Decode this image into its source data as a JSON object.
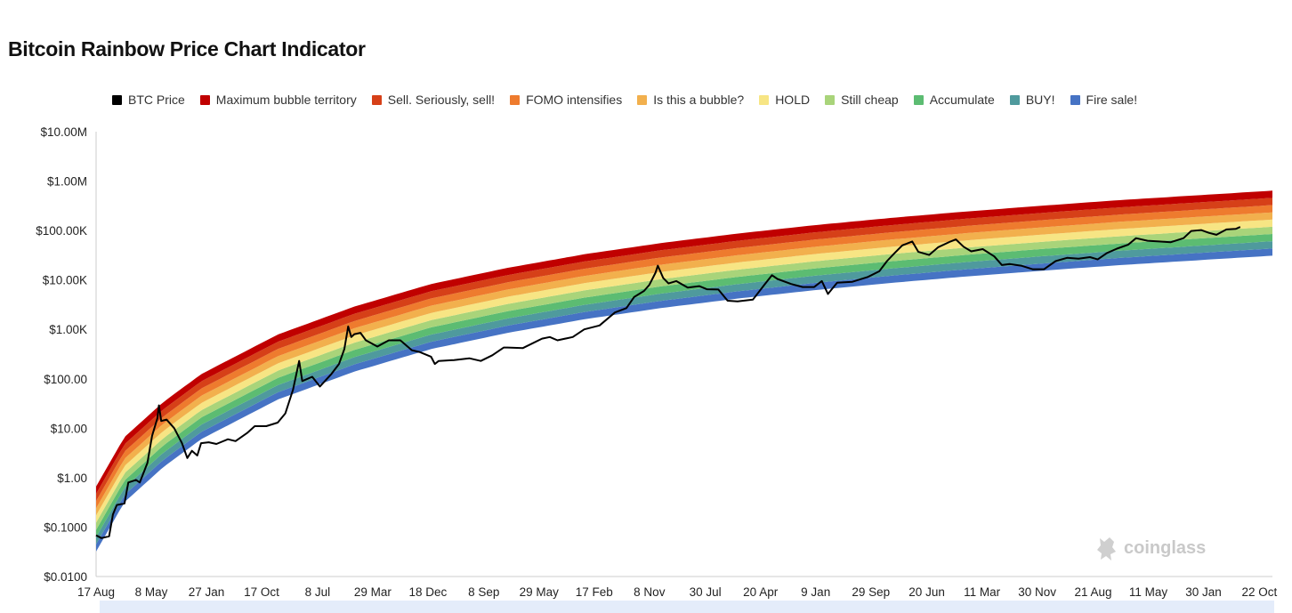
{
  "title": "Bitcoin Rainbow Price Chart Indicator",
  "watermark": "coinglass",
  "legend": [
    {
      "label": "BTC Price",
      "color": "#000000",
      "name": "legend-btc-price"
    },
    {
      "label": "Maximum bubble territory",
      "color": "#c00000",
      "name": "legend-maximum-bubble"
    },
    {
      "label": "Sell. Seriously, sell!",
      "color": "#d64018",
      "name": "legend-sell"
    },
    {
      "label": "FOMO intensifies",
      "color": "#ee7b2e",
      "name": "legend-fomo"
    },
    {
      "label": "Is this a bubble?",
      "color": "#f2b04d",
      "name": "legend-bubble"
    },
    {
      "label": "HOLD",
      "color": "#f7e584",
      "name": "legend-hold"
    },
    {
      "label": "Still cheap",
      "color": "#a9d47a",
      "name": "legend-still-cheap"
    },
    {
      "label": "Accumulate",
      "color": "#5cbc72",
      "name": "legend-accumulate"
    },
    {
      "label": "BUY!",
      "color": "#4f9a9d",
      "name": "legend-buy"
    },
    {
      "label": "Fire sale!",
      "color": "#4673c4",
      "name": "legend-fire-sale"
    }
  ],
  "chart_data": {
    "type": "area",
    "title": "Bitcoin Rainbow Price Chart Indicator",
    "yscale": "log",
    "ylim": [
      0.01,
      10000000
    ],
    "y_ticks": [
      "$10.00M",
      "$1.00M",
      "$100.00K",
      "$10.00K",
      "$1.00K",
      "$100.00",
      "$10.00",
      "$1.00",
      "$0.1000",
      "$0.0100"
    ],
    "x_ticks": [
      "17 Aug",
      "8 May",
      "27 Jan",
      "17 Oct",
      "8 Jul",
      "29 Mar",
      "18 Dec",
      "8 Sep",
      "29 May",
      "17 Feb",
      "8 Nov",
      "30 Jul",
      "20 Apr",
      "9 Jan",
      "29 Sep",
      "20 Jun",
      "11 Mar",
      "30 Nov",
      "21 Aug",
      "11 May",
      "30 Jan",
      "22 Oct"
    ],
    "x_years": [
      2010.63,
      2011.35,
      2012.07,
      2012.79,
      2013.52,
      2014.24,
      2014.96,
      2015.69,
      2016.41,
      2017.13,
      2017.85,
      2018.58,
      2019.3,
      2020.02,
      2020.74,
      2021.47,
      2022.19,
      2022.91,
      2023.64,
      2024.36,
      2025.08,
      2025.81
    ],
    "xlim_years": [
      2010.63,
      2025.98
    ],
    "bands": {
      "names": [
        "Fire sale!",
        "BUY!",
        "Accumulate",
        "Still cheap",
        "HOLD",
        "Is this a bubble?",
        "FOMO intensifies",
        "Sell. Seriously, sell!",
        "Maximum bubble territory"
      ],
      "colors": [
        "#4673c4",
        "#4f9a9d",
        "#5cbc72",
        "#a9d47a",
        "#f7e584",
        "#f2b04d",
        "#ee7b2e",
        "#d64018",
        "#c00000"
      ],
      "lower_edge_points": [
        [
          2010.63,
          0.032
        ],
        [
          2011.0,
          0.32
        ],
        [
          2011.5,
          1.6
        ],
        [
          2012.0,
          6
        ],
        [
          2013.0,
          38
        ],
        [
          2014.0,
          140
        ],
        [
          2015.0,
          400
        ],
        [
          2016.0,
          850
        ],
        [
          2017.0,
          1600
        ],
        [
          2018.0,
          2700
        ],
        [
          2019.0,
          4200
        ],
        [
          2020.0,
          6200
        ],
        [
          2021.0,
          8700
        ],
        [
          2022.0,
          11800
        ],
        [
          2023.0,
          15500
        ],
        [
          2024.0,
          20000
        ],
        [
          2025.0,
          25000
        ],
        [
          2025.98,
          31000
        ]
      ],
      "band_multiplier": 1.4,
      "band_count": 9
    },
    "series": [
      {
        "name": "BTC Price",
        "color": "#000000",
        "points": [
          [
            2010.63,
            0.068
          ],
          [
            2010.7,
            0.06
          ],
          [
            2010.8,
            0.065
          ],
          [
            2010.85,
            0.18
          ],
          [
            2010.9,
            0.28
          ],
          [
            2011.0,
            0.3
          ],
          [
            2011.05,
            0.8
          ],
          [
            2011.15,
            0.9
          ],
          [
            2011.2,
            0.8
          ],
          [
            2011.3,
            2
          ],
          [
            2011.36,
            7
          ],
          [
            2011.43,
            16
          ],
          [
            2011.45,
            29
          ],
          [
            2011.48,
            14
          ],
          [
            2011.55,
            15
          ],
          [
            2011.65,
            10
          ],
          [
            2011.75,
            5
          ],
          [
            2011.82,
            2.5
          ],
          [
            2011.88,
            3.5
          ],
          [
            2011.95,
            2.8
          ],
          [
            2012.0,
            5
          ],
          [
            2012.1,
            5.2
          ],
          [
            2012.2,
            4.8
          ],
          [
            2012.35,
            6
          ],
          [
            2012.45,
            5.5
          ],
          [
            2012.6,
            8
          ],
          [
            2012.7,
            11
          ],
          [
            2012.85,
            11
          ],
          [
            2013.0,
            13
          ],
          [
            2013.1,
            20
          ],
          [
            2013.2,
            60
          ],
          [
            2013.28,
            230
          ],
          [
            2013.32,
            90
          ],
          [
            2013.45,
            110
          ],
          [
            2013.55,
            70
          ],
          [
            2013.7,
            125
          ],
          [
            2013.8,
            200
          ],
          [
            2013.87,
            400
          ],
          [
            2013.92,
            1150
          ],
          [
            2013.96,
            700
          ],
          [
            2014.0,
            800
          ],
          [
            2014.08,
            850
          ],
          [
            2014.15,
            600
          ],
          [
            2014.3,
            450
          ],
          [
            2014.45,
            600
          ],
          [
            2014.6,
            600
          ],
          [
            2014.75,
            380
          ],
          [
            2014.85,
            350
          ],
          [
            2015.0,
            280
          ],
          [
            2015.05,
            200
          ],
          [
            2015.1,
            230
          ],
          [
            2015.3,
            240
          ],
          [
            2015.5,
            260
          ],
          [
            2015.65,
            230
          ],
          [
            2015.8,
            300
          ],
          [
            2015.95,
            430
          ],
          [
            2016.0,
            430
          ],
          [
            2016.2,
            420
          ],
          [
            2016.45,
            650
          ],
          [
            2016.55,
            700
          ],
          [
            2016.65,
            600
          ],
          [
            2016.85,
            700
          ],
          [
            2017.0,
            1000
          ],
          [
            2017.2,
            1200
          ],
          [
            2017.4,
            2200
          ],
          [
            2017.55,
            2700
          ],
          [
            2017.65,
            4500
          ],
          [
            2017.78,
            6000
          ],
          [
            2017.85,
            8000
          ],
          [
            2017.93,
            14000
          ],
          [
            2017.96,
            19500
          ],
          [
            2018.03,
            11000
          ],
          [
            2018.1,
            8500
          ],
          [
            2018.2,
            9500
          ],
          [
            2018.35,
            7000
          ],
          [
            2018.5,
            7500
          ],
          [
            2018.6,
            6500
          ],
          [
            2018.75,
            6400
          ],
          [
            2018.87,
            3800
          ],
          [
            2019.0,
            3700
          ],
          [
            2019.2,
            4000
          ],
          [
            2019.35,
            8000
          ],
          [
            2019.45,
            12500
          ],
          [
            2019.52,
            10500
          ],
          [
            2019.7,
            8300
          ],
          [
            2019.85,
            7200
          ],
          [
            2020.0,
            7200
          ],
          [
            2020.1,
            9500
          ],
          [
            2020.18,
            5200
          ],
          [
            2020.3,
            8800
          ],
          [
            2020.5,
            9200
          ],
          [
            2020.7,
            11500
          ],
          [
            2020.85,
            15000
          ],
          [
            2020.95,
            24000
          ],
          [
            2021.05,
            35000
          ],
          [
            2021.15,
            50000
          ],
          [
            2021.28,
            60000
          ],
          [
            2021.36,
            37000
          ],
          [
            2021.5,
            32000
          ],
          [
            2021.62,
            46000
          ],
          [
            2021.78,
            60000
          ],
          [
            2021.85,
            66000
          ],
          [
            2021.95,
            47000
          ],
          [
            2022.05,
            38000
          ],
          [
            2022.2,
            42000
          ],
          [
            2022.35,
            30000
          ],
          [
            2022.45,
            20000
          ],
          [
            2022.55,
            21000
          ],
          [
            2022.7,
            19500
          ],
          [
            2022.85,
            16500
          ],
          [
            2023.0,
            16500
          ],
          [
            2023.15,
            24000
          ],
          [
            2023.3,
            28000
          ],
          [
            2023.45,
            27000
          ],
          [
            2023.6,
            29000
          ],
          [
            2023.7,
            26000
          ],
          [
            2023.82,
            35000
          ],
          [
            2023.95,
            43000
          ],
          [
            2024.1,
            52000
          ],
          [
            2024.2,
            70000
          ],
          [
            2024.35,
            62000
          ],
          [
            2024.5,
            60000
          ],
          [
            2024.65,
            58000
          ],
          [
            2024.82,
            70000
          ],
          [
            2024.92,
            98000
          ],
          [
            2025.05,
            102000
          ],
          [
            2025.15,
            90000
          ],
          [
            2025.25,
            82000
          ],
          [
            2025.38,
            105000
          ],
          [
            2025.5,
            108000
          ],
          [
            2025.56,
            118000
          ]
        ]
      }
    ]
  }
}
